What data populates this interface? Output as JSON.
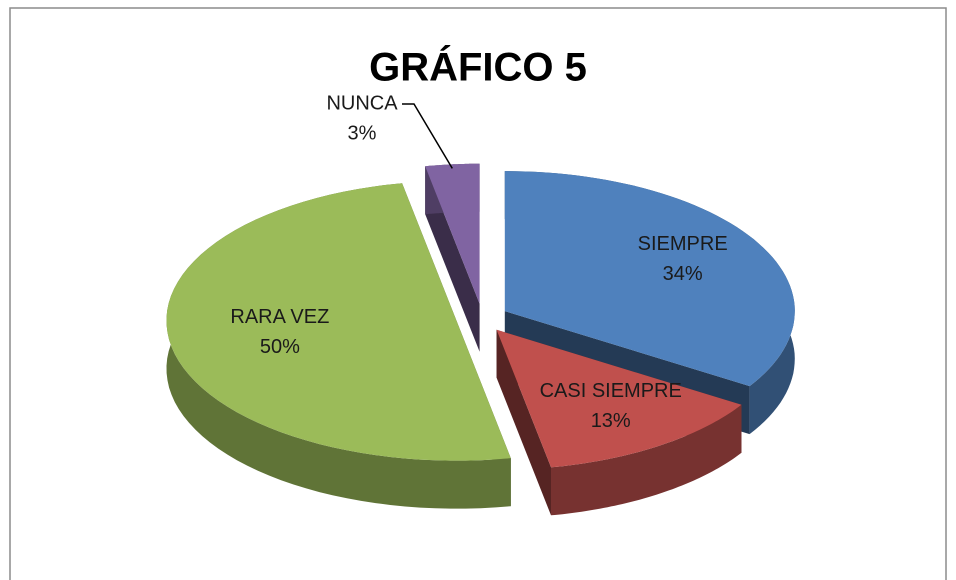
{
  "chart_data": {
    "type": "pie",
    "title": "GRÁFICO 5",
    "categories": [
      "SIEMPRE",
      "CASI SIEMPRE",
      "RARA VEZ",
      "NUNCA"
    ],
    "values": [
      34,
      13,
      50,
      3
    ],
    "value_labels": [
      "34%",
      "13%",
      "50%",
      "3%"
    ],
    "colors": [
      "#4f81bd",
      "#c0504d",
      "#9bbb59",
      "#8064a2"
    ]
  }
}
